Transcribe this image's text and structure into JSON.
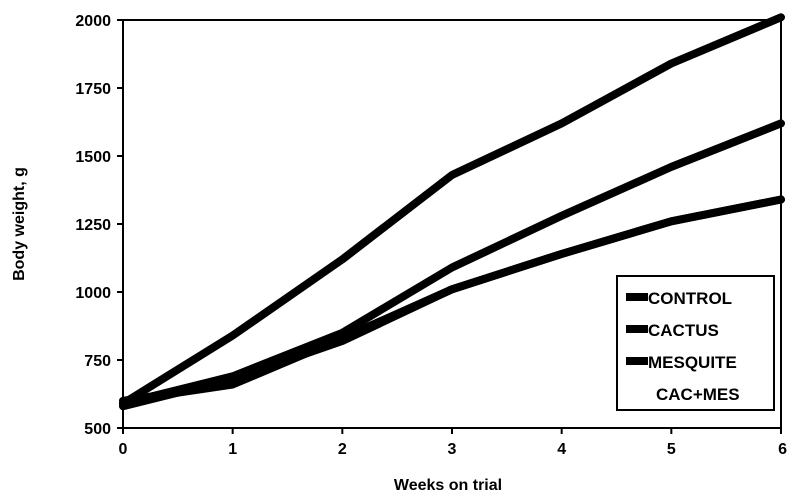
{
  "chart_data": {
    "type": "line",
    "title": "",
    "xlabel": "Weeks on trial",
    "ylabel": "Body weight, g",
    "x": [
      0,
      1,
      2,
      3,
      4,
      5,
      6
    ],
    "xlim": [
      0,
      6
    ],
    "ylim": [
      500,
      2000
    ],
    "x_ticks": [
      "0",
      "1",
      "2",
      "3",
      "4",
      "5",
      "6"
    ],
    "y_ticks": [
      "500",
      "750",
      "1000",
      "1250",
      "1500",
      "1750",
      "2000"
    ],
    "grid": false,
    "legend_position": "bottom-right",
    "series": [
      {
        "name": "CONTROL",
        "values": [
          590,
          840,
          1120,
          1430,
          1620,
          1840,
          2010
        ],
        "color": "#000000",
        "swatch": true
      },
      {
        "name": "CACTUS",
        "values": [
          590,
          690,
          850,
          1090,
          1280,
          1460,
          1620
        ],
        "color": "#000000",
        "swatch": true
      },
      {
        "name": "MESQUITE",
        "values": [
          580,
          680,
          820,
          1010,
          1140,
          1260,
          1340
        ],
        "color": "#000000",
        "swatch": true
      },
      {
        "name": "CAC+MES",
        "values": [
          600,
          660,
          830,
          1010,
          1140,
          1260,
          1340
        ],
        "color": "#000000",
        "swatch": false
      }
    ]
  }
}
